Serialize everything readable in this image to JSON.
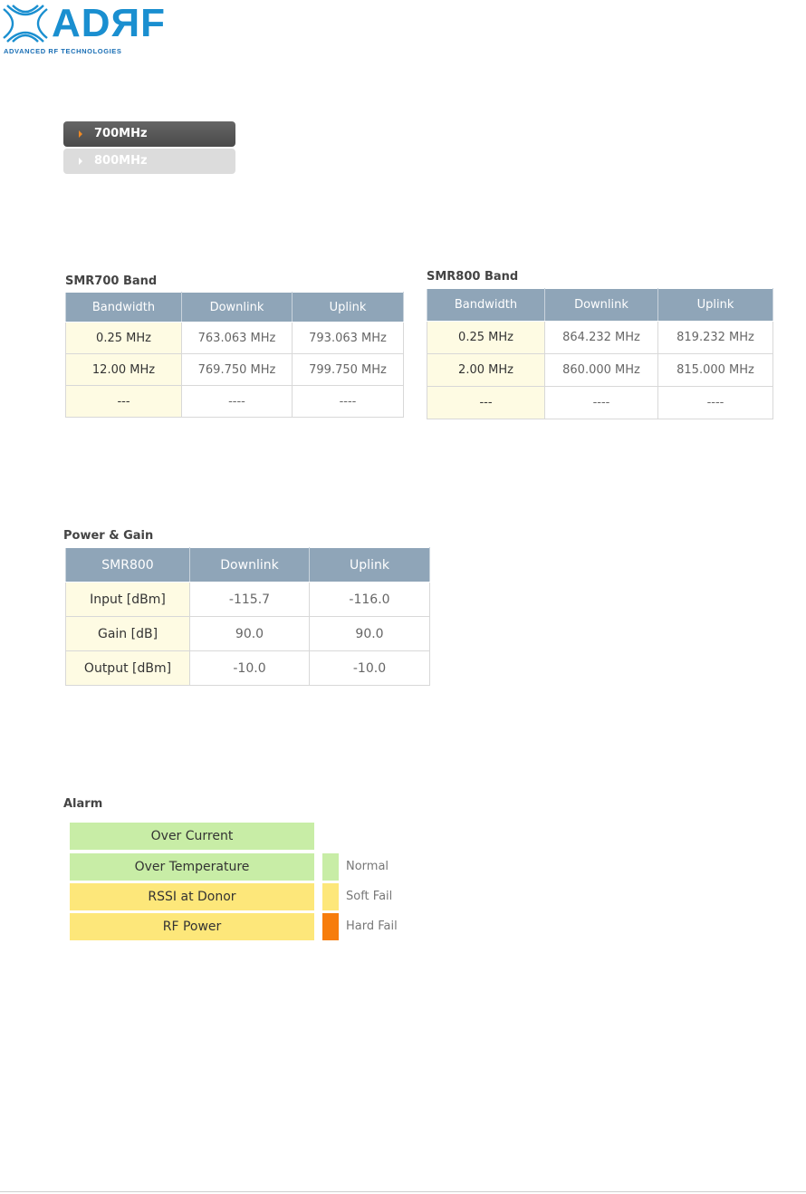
{
  "logo": {
    "word": "ADЯF",
    "tagline": "ADVANCED RF TECHNOLOGIES"
  },
  "bands": [
    {
      "label": "700MHz",
      "active": true
    },
    {
      "label": "800MHz",
      "active": false
    }
  ],
  "smr700": {
    "title": "SMR700 Band",
    "headers": [
      "Bandwidth",
      "Downlink",
      "Uplink"
    ],
    "rows": [
      [
        "0.25 MHz",
        "763.063 MHz",
        "793.063 MHz"
      ],
      [
        "12.00 MHz",
        "769.750 MHz",
        "799.750 MHz"
      ],
      [
        "---",
        "----",
        "----"
      ]
    ]
  },
  "smr800": {
    "title": "SMR800 Band",
    "headers": [
      "Bandwidth",
      "Downlink",
      "Uplink"
    ],
    "rows": [
      [
        "0.25 MHz",
        "864.232 MHz",
        "819.232 MHz"
      ],
      [
        "2.00 MHz",
        "860.000 MHz",
        "815.000 MHz"
      ],
      [
        "---",
        "----",
        "----"
      ]
    ]
  },
  "power_gain": {
    "title": "Power & Gain",
    "headers": [
      "SMR800",
      "Downlink",
      "Uplink"
    ],
    "rows": [
      [
        "Input [dBm]",
        "-115.7",
        "-116.0"
      ],
      [
        "Gain [dB]",
        "90.0",
        "90.0"
      ],
      [
        "Output [dBm]",
        "-10.0",
        "-10.0"
      ]
    ]
  },
  "alarm": {
    "title": "Alarm",
    "items": [
      {
        "label": "Over Current",
        "status": "normal"
      },
      {
        "label": "Over Temperature",
        "status": "normal"
      },
      {
        "label": "RSSI at Donor",
        "status": "soft"
      },
      {
        "label": "RF Power",
        "status": "soft"
      }
    ],
    "legend": [
      {
        "label": "Normal",
        "color": "#c8eda6"
      },
      {
        "label": "Soft Fail",
        "color": "#fde77a"
      },
      {
        "label": "Hard Fail",
        "color": "#f77d0c"
      }
    ]
  },
  "colors": {
    "header_bg": "#8fa5b8",
    "label_bg": "#fefbe3",
    "logo_blue": "#1a8fd0",
    "tab_arrow": "#f08a24"
  }
}
